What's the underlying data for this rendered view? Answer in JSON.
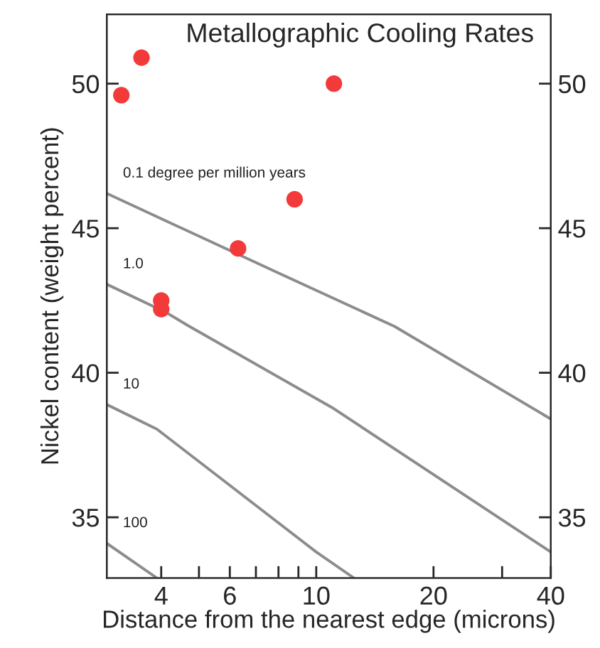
{
  "chart_data": {
    "type": "line",
    "title": "Metallographic Cooling Rates",
    "xlabel": "Distance from the nearest edge (microns)",
    "ylabel": "Nickel content (weight percent)",
    "log": "x",
    "xlim": [
      2.9,
      40
    ],
    "xticks": [
      4,
      {
        "value": 5,
        "label": null
      },
      6,
      {
        "value": 7,
        "label": null
      },
      {
        "value": 8,
        "label": null
      },
      {
        "value": 9,
        "label": null
      },
      10,
      20,
      {
        "value": 30,
        "label": null
      },
      40
    ],
    "ylim": [
      32.9,
      52.4
    ],
    "yticks": [
      35,
      40,
      45,
      50
    ],
    "y2lim": [
      32.9,
      52.4
    ],
    "y2ticks": [
      35,
      40,
      45,
      50
    ],
    "grid": false,
    "series": [
      {
        "name": "0.1 degree per million years",
        "color": "#8c8c8c",
        "x": [
          2.9,
          8.0,
          15.9,
          40
        ],
        "values": [
          46.2,
          43.45,
          41.6,
          38.4
        ]
      },
      {
        "name": "1.0",
        "color": "#8c8c8c",
        "x": [
          2.9,
          4.1,
          4.73,
          10.97,
          40
        ],
        "values": [
          43.06,
          42.1,
          41.6,
          38.8,
          33.8
        ]
      },
      {
        "name": "10",
        "color": "#8c8c8c",
        "x": [
          2.9,
          3.9,
          10,
          12.5
        ],
        "values": [
          38.9,
          38.05,
          33.8,
          32.9
        ]
      },
      {
        "name": "100",
        "color": "#8c8c8c",
        "x": [
          2.9,
          3.9
        ],
        "values": [
          34.1,
          32.9
        ]
      },
      {
        "type": "scatter",
        "color": "#f23a3a",
        "marker": "circle",
        "x": [
          3.16,
          3.56,
          11.1,
          8.8,
          6.3,
          4.0,
          4.0
        ],
        "values": [
          49.6,
          50.9,
          50.0,
          46.0,
          44.3,
          42.5,
          42.2
        ]
      }
    ]
  }
}
